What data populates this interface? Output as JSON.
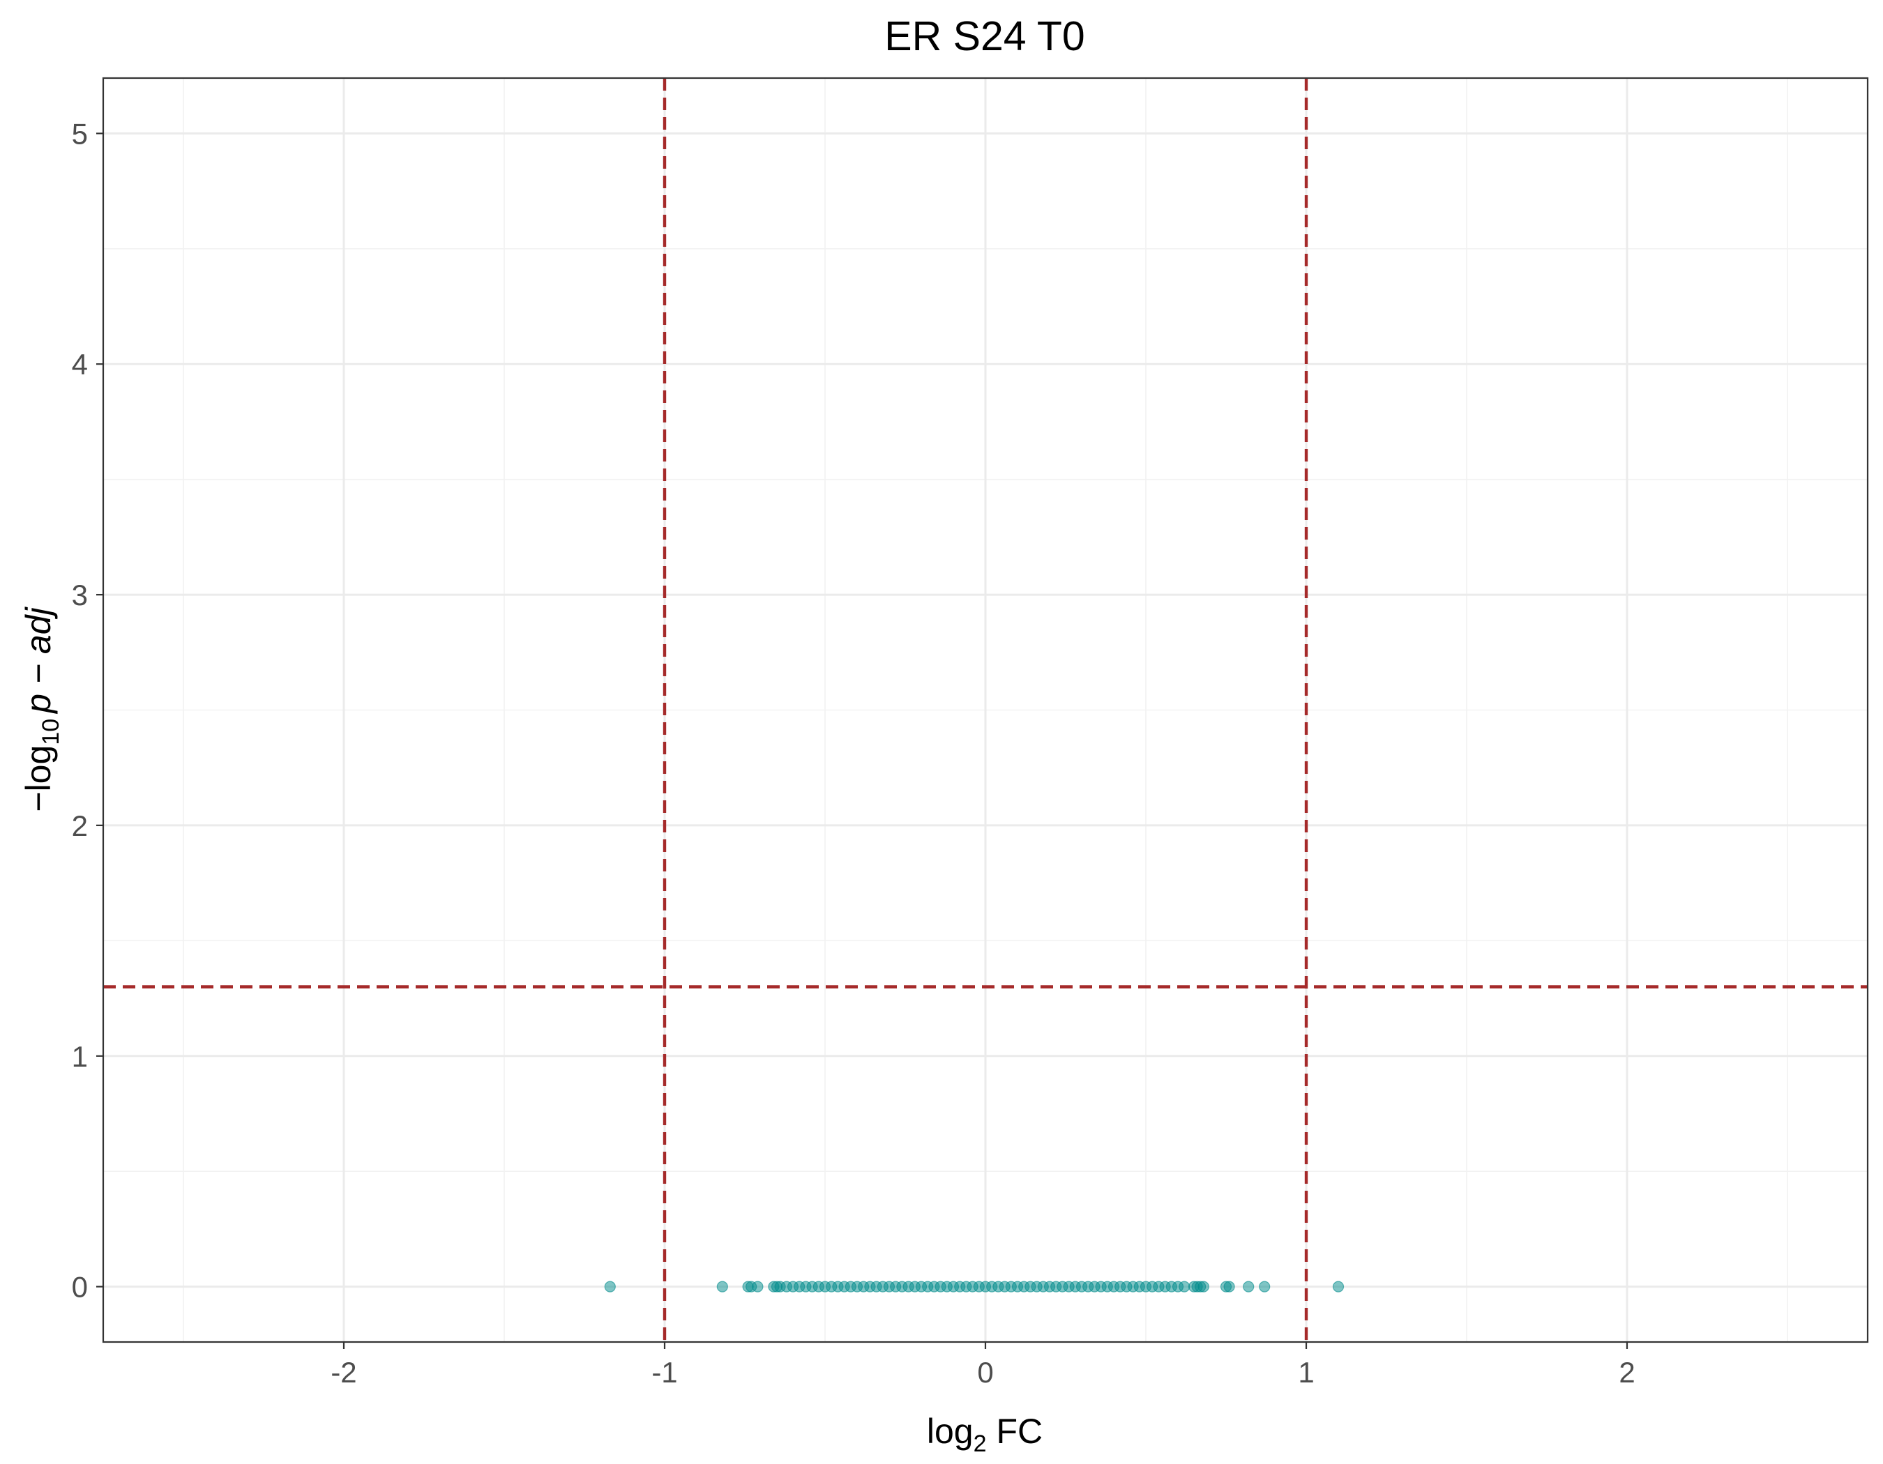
{
  "chart_data": {
    "type": "scatter",
    "title": "ER S24 T0",
    "xlabel": {
      "base": "log",
      "sub": "2",
      "rest": " FC"
    },
    "ylabel": {
      "minus": "−",
      "base": "log",
      "sub": "10",
      "italic": "p − adj"
    },
    "xlim": [
      -2.75,
      2.75
    ],
    "ylim": [
      -0.24,
      5.24
    ],
    "x_ticks": [
      "-2",
      "-1",
      "0",
      "1",
      "2"
    ],
    "x_tick_values": [
      -2,
      -1,
      0,
      1,
      2
    ],
    "y_ticks": [
      "0",
      "1",
      "2",
      "3",
      "4",
      "5"
    ],
    "y_tick_values": [
      0,
      1,
      2,
      3,
      4,
      5
    ],
    "grid": true,
    "legend": "none",
    "point_color": "#008b8b",
    "point_opacity": 0.5,
    "threshold_color": "#a52a2a",
    "thresholds": {
      "vertical": [
        -1,
        1
      ],
      "horizontal": [
        1.3
      ]
    },
    "series": [
      {
        "x": [
          -1.17,
          -0.82,
          -0.74,
          -0.73,
          -0.71,
          -0.66,
          -0.65,
          -0.64,
          -0.62,
          -0.6,
          -0.58,
          -0.56,
          -0.54,
          -0.52,
          -0.5,
          -0.48,
          -0.46,
          -0.44,
          -0.42,
          -0.4,
          -0.38,
          -0.36,
          -0.34,
          -0.32,
          -0.3,
          -0.28,
          -0.26,
          -0.24,
          -0.22,
          -0.2,
          -0.18,
          -0.16,
          -0.14,
          -0.12,
          -0.1,
          -0.08,
          -0.06,
          -0.04,
          -0.02,
          0.0,
          0.02,
          0.04,
          0.06,
          0.08,
          0.1,
          0.12,
          0.14,
          0.16,
          0.18,
          0.2,
          0.22,
          0.24,
          0.26,
          0.28,
          0.3,
          0.32,
          0.34,
          0.36,
          0.38,
          0.4,
          0.42,
          0.44,
          0.46,
          0.48,
          0.5,
          0.52,
          0.54,
          0.56,
          0.58,
          0.6,
          0.62,
          0.65,
          0.66,
          0.67,
          0.68,
          0.75,
          0.76,
          0.82,
          0.87,
          1.1
        ],
        "y": [
          0,
          0,
          0,
          0,
          0,
          0,
          0,
          0,
          0,
          0,
          0,
          0,
          0,
          0,
          0,
          0,
          0,
          0,
          0,
          0,
          0,
          0,
          0,
          0,
          0,
          0,
          0,
          0,
          0,
          0,
          0,
          0,
          0,
          0,
          0,
          0,
          0,
          0,
          0,
          0,
          0,
          0,
          0,
          0,
          0,
          0,
          0,
          0,
          0,
          0,
          0,
          0,
          0,
          0,
          0,
          0,
          0,
          0,
          0,
          0,
          0,
          0,
          0,
          0,
          0,
          0,
          0,
          0,
          0,
          0,
          0,
          0,
          0,
          0,
          0,
          0,
          0,
          0,
          0,
          0
        ]
      }
    ]
  }
}
